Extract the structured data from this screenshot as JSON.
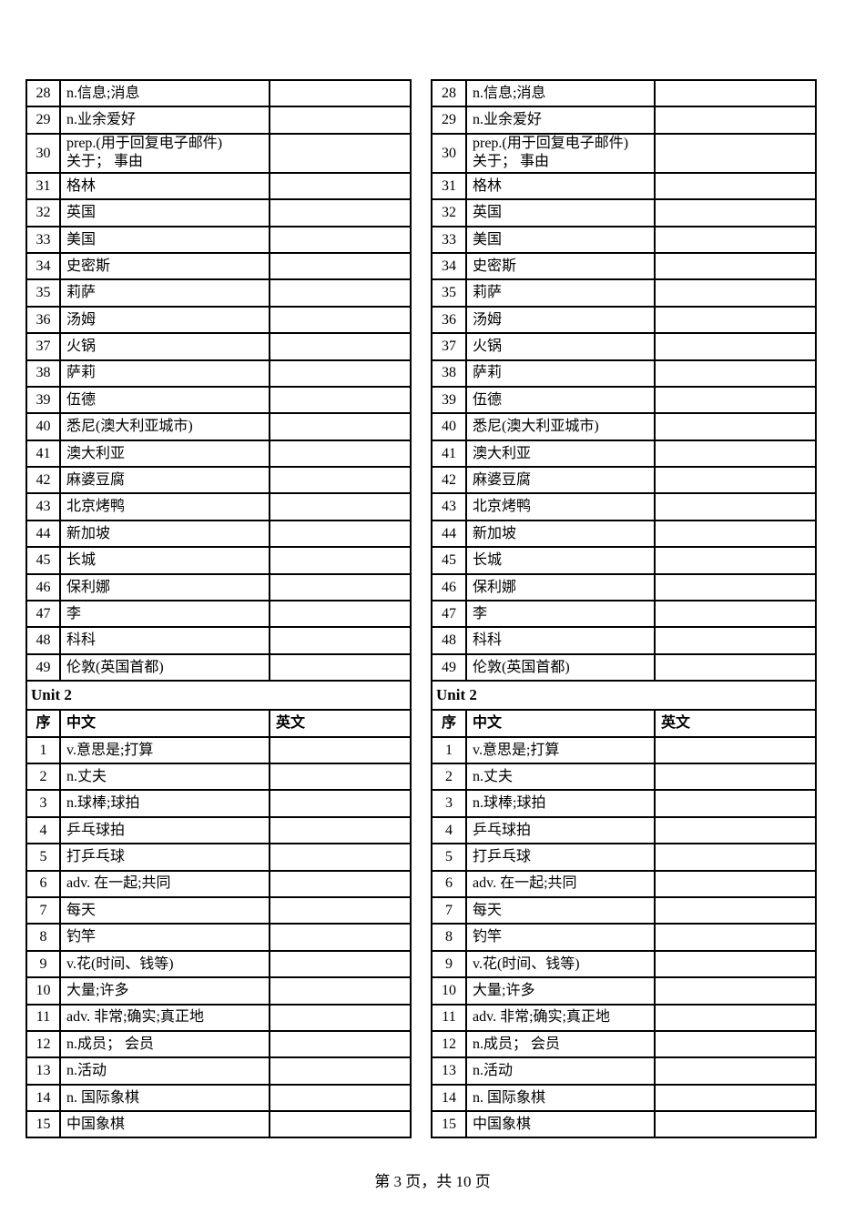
{
  "colors": {
    "background": "#ffffff",
    "border": "#000000",
    "text": "#000000"
  },
  "footer": {
    "page_info": "第 3 页，共 10 页"
  },
  "vocab_table": {
    "unit_title": "Unit 2",
    "headers": {
      "index": "序",
      "chinese": "中文",
      "english": "英文"
    },
    "section1_rows": [
      {
        "num": "28",
        "cn": "n.信息;消息",
        "en": ""
      },
      {
        "num": "29",
        "cn": "n.业余爱好",
        "en": ""
      },
      {
        "num": "30",
        "cn": "prep.(用于回复电子邮件)",
        "cn2": "关于； 事由",
        "en": ""
      },
      {
        "num": "31",
        "cn": "格林",
        "en": ""
      },
      {
        "num": "32",
        "cn": "英国",
        "en": ""
      },
      {
        "num": "33",
        "cn": "美国",
        "en": ""
      },
      {
        "num": "34",
        "cn": "史密斯",
        "en": ""
      },
      {
        "num": "35",
        "cn": "莉萨",
        "en": ""
      },
      {
        "num": "36",
        "cn": "汤姆",
        "en": ""
      },
      {
        "num": "37",
        "cn": "火锅",
        "en": ""
      },
      {
        "num": "38",
        "cn": "萨莉",
        "en": ""
      },
      {
        "num": "39",
        "cn": "伍德",
        "en": ""
      },
      {
        "num": "40",
        "cn": "悉尼(澳大利亚城市)",
        "en": ""
      },
      {
        "num": "41",
        "cn": "澳大利亚",
        "en": ""
      },
      {
        "num": "42",
        "cn": "麻婆豆腐",
        "en": ""
      },
      {
        "num": "43",
        "cn": "北京烤鸭",
        "en": ""
      },
      {
        "num": "44",
        "cn": "新加坡",
        "en": ""
      },
      {
        "num": "45",
        "cn": "长城",
        "en": ""
      },
      {
        "num": "46",
        "cn": "保利娜",
        "en": ""
      },
      {
        "num": "47",
        "cn": "李",
        "en": ""
      },
      {
        "num": "48",
        "cn": "科科",
        "en": ""
      },
      {
        "num": "49",
        "cn": "伦敦(英国首都)",
        "en": ""
      }
    ],
    "section2_rows": [
      {
        "num": "1",
        "cn": "v.意思是;打算",
        "en": ""
      },
      {
        "num": "2",
        "cn": "n.丈夫",
        "en": ""
      },
      {
        "num": "3",
        "cn": "n.球棒;球拍",
        "en": ""
      },
      {
        "num": "4",
        "cn": "乒乓球拍",
        "en": ""
      },
      {
        "num": "5",
        "cn": "打乒乓球",
        "en": ""
      },
      {
        "num": "6",
        "cn": "adv. 在一起;共同",
        "en": ""
      },
      {
        "num": "7",
        "cn": "每天",
        "en": ""
      },
      {
        "num": "8",
        "cn": "钓竿",
        "en": ""
      },
      {
        "num": "9",
        "cn": "v.花(时间、钱等)",
        "en": ""
      },
      {
        "num": "10",
        "cn": "大量;许多",
        "en": ""
      },
      {
        "num": "11",
        "cn": "adv. 非常;确实;真正地",
        "en": ""
      },
      {
        "num": "12",
        "cn": "n.成员； 会员",
        "en": ""
      },
      {
        "num": "13",
        "cn": "n.活动",
        "en": ""
      },
      {
        "num": "14",
        "cn": "n. 国际象棋",
        "en": ""
      },
      {
        "num": "15",
        "cn": "中国象棋",
        "en": ""
      }
    ]
  }
}
